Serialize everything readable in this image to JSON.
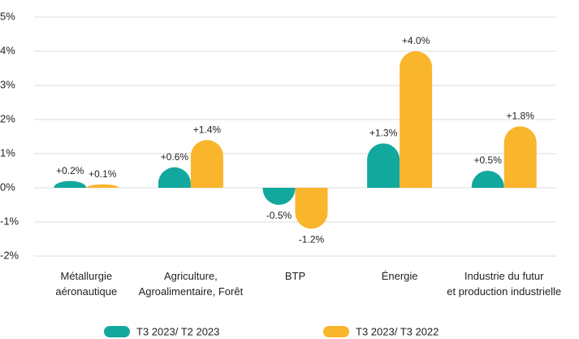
{
  "chart_data": {
    "type": "bar",
    "categories": [
      "Métallurgie\naéronautique",
      "Agriculture,\nAgroalimentaire, Forêt",
      "BTP",
      "Énergie",
      "Industrie du futur\net production industrielle"
    ],
    "series": [
      {
        "name": "T3 2023/ T2 2023",
        "color": "#13a89e",
        "values": [
          0.2,
          0.6,
          -0.5,
          1.3,
          0.5
        ],
        "value_labels": [
          "+0.2%",
          "+0.6%",
          "-0.5%",
          "+1.3%",
          "+0.5%"
        ]
      },
      {
        "name": "T3 2023/ T3 2022",
        "color": "#f9b52c",
        "values": [
          0.1,
          1.4,
          -1.2,
          4.0,
          1.8
        ],
        "value_labels": [
          "+0.1%",
          "+1.4%",
          "-1.2%",
          "+4.0%",
          "+1.8%"
        ]
      }
    ],
    "ylim": [
      -2,
      5
    ],
    "yticks": [
      {
        "value": -2,
        "label": "-2%"
      },
      {
        "value": -1,
        "label": "-1%"
      },
      {
        "value": 0,
        "label": "0%"
      },
      {
        "value": 1,
        "label": "1%"
      },
      {
        "value": 2,
        "label": "2%"
      },
      {
        "value": 3,
        "label": "3%"
      },
      {
        "value": 4,
        "label": "4%"
      },
      {
        "value": 5,
        "label": "5%"
      }
    ],
    "grid": true
  }
}
